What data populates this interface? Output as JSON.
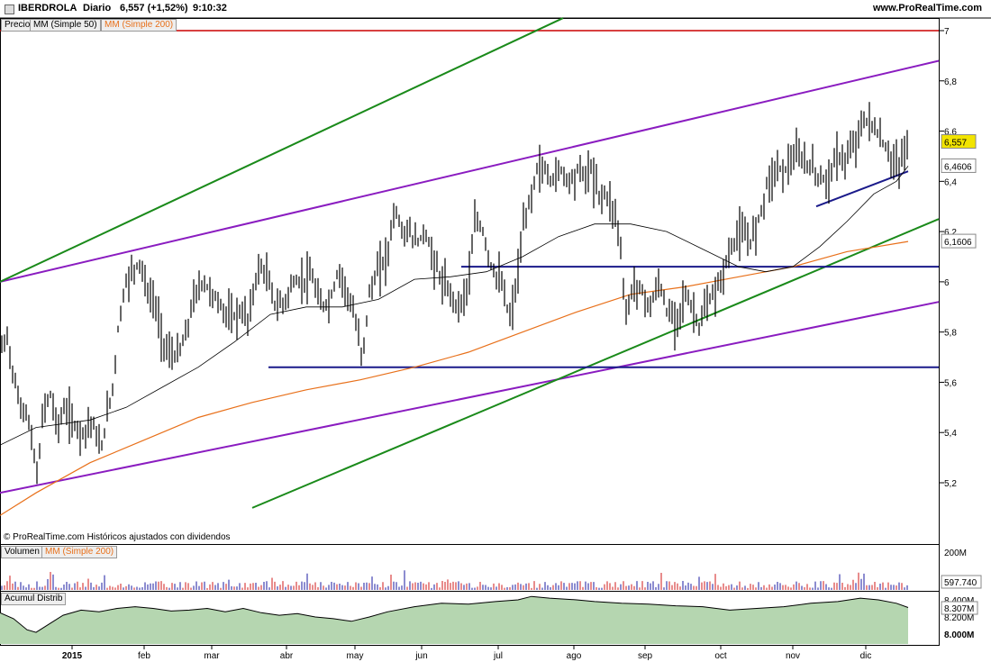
{
  "header": {
    "symbol": "IBERDROLA",
    "period": "Diario",
    "quote": "6,557 (+1,52%)",
    "time": "9:10:32",
    "site": "www.ProRealTime.com"
  },
  "legends": {
    "price": [
      "Precio",
      "MM (Simple 50)",
      "MM (Simple 200)"
    ],
    "volume": [
      "Volumen",
      "MM (Simple 200)"
    ],
    "acum": [
      "Acumul Distrib"
    ]
  },
  "watermark": "© ProRealTime.com  Históricos ajustados con dividendos",
  "colors": {
    "price": "#000000",
    "ma50": "#000000",
    "ma200": "#e8701a",
    "red_line": "#cc0000",
    "purple_channel": "#8a1cc0",
    "green_channel": "#1a8a1a",
    "blue_lines": "#1a1a8a",
    "vol_up": "#1a1aa0",
    "vol_down": "#d01a1a",
    "acum_fill": "#b5d6b0",
    "label_yellow": "#f2e400",
    "label_orange_text": "#e8701a"
  },
  "chart_data": [
    {
      "type": "line",
      "title": "IBERDROLA Diario",
      "x_labels": [
        "2015",
        "feb",
        "mar",
        "abr",
        "may",
        "jun",
        "jul",
        "ago",
        "sep",
        "oct",
        "nov",
        "dic"
      ],
      "ylim": [
        5.1,
        7.05
      ],
      "y_ticks": [
        "7",
        "6,8",
        "6,6",
        "6,4",
        "6,2",
        "6",
        "5,8",
        "5,6",
        "5,4",
        "5,2"
      ],
      "price_points": [
        [
          0,
          5.72
        ],
        [
          8,
          5.78
        ],
        [
          14,
          5.65
        ],
        [
          22,
          5.5
        ],
        [
          30,
          5.48
        ],
        [
          38,
          5.3
        ],
        [
          42,
          5.22
        ],
        [
          48,
          5.5
        ],
        [
          56,
          5.55
        ],
        [
          64,
          5.42
        ],
        [
          72,
          5.5
        ],
        [
          82,
          5.43
        ],
        [
          92,
          5.4
        ],
        [
          102,
          5.45
        ],
        [
          112,
          5.32
        ],
        [
          118,
          5.45
        ],
        [
          126,
          5.6
        ],
        [
          132,
          5.85
        ],
        [
          140,
          6.0
        ],
        [
          148,
          6.05
        ],
        [
          156,
          6.08
        ],
        [
          164,
          5.95
        ],
        [
          172,
          5.92
        ],
        [
          178,
          5.8
        ],
        [
          186,
          5.72
        ],
        [
          196,
          5.7
        ],
        [
          206,
          5.78
        ],
        [
          216,
          5.95
        ],
        [
          226,
          6.0
        ],
        [
          236,
          5.95
        ],
        [
          246,
          5.9
        ],
        [
          256,
          5.85
        ],
        [
          266,
          5.88
        ],
        [
          276,
          5.85
        ],
        [
          286,
          6.05
        ],
        [
          292,
          6.05
        ],
        [
          298,
          6.0
        ],
        [
          306,
          5.9
        ],
        [
          316,
          5.92
        ],
        [
          326,
          6.0
        ],
        [
          336,
          6.0
        ],
        [
          346,
          6.02
        ],
        [
          356,
          5.9
        ],
        [
          366,
          5.92
        ],
        [
          376,
          6.05
        ],
        [
          386,
          5.95
        ],
        [
          394,
          5.85
        ],
        [
          402,
          5.7
        ],
        [
          410,
          5.95
        ],
        [
          420,
          6.05
        ],
        [
          430,
          6.1
        ],
        [
          438,
          6.3
        ],
        [
          446,
          6.2
        ],
        [
          454,
          6.2
        ],
        [
          462,
          6.15
        ],
        [
          472,
          6.2
        ],
        [
          480,
          6.1
        ],
        [
          490,
          6.0
        ],
        [
          500,
          5.95
        ],
        [
          510,
          5.9
        ],
        [
          520,
          6.0
        ],
        [
          528,
          6.25
        ],
        [
          536,
          6.2
        ],
        [
          546,
          6.05
        ],
        [
          556,
          6.0
        ],
        [
          566,
          5.85
        ],
        [
          574,
          6.0
        ],
        [
          580,
          6.2
        ],
        [
          590,
          6.35
        ],
        [
          596,
          6.45
        ],
        [
          604,
          6.45
        ],
        [
          612,
          6.4
        ],
        [
          622,
          6.45
        ],
        [
          632,
          6.4
        ],
        [
          642,
          6.45
        ],
        [
          650,
          6.42
        ],
        [
          656,
          6.45
        ],
        [
          664,
          6.35
        ],
        [
          672,
          6.35
        ],
        [
          680,
          6.3
        ],
        [
          686,
          6.22
        ],
        [
          690,
          6.1
        ],
        [
          694,
          5.85
        ],
        [
          700,
          5.95
        ],
        [
          706,
          6.0
        ],
        [
          714,
          5.95
        ],
        [
          722,
          5.9
        ],
        [
          732,
          6.0
        ],
        [
          740,
          5.88
        ],
        [
          750,
          5.85
        ],
        [
          760,
          5.95
        ],
        [
          768,
          5.9
        ],
        [
          776,
          5.82
        ],
        [
          784,
          5.9
        ],
        [
          792,
          5.95
        ],
        [
          800,
          6.0
        ],
        [
          806,
          6.08
        ],
        [
          814,
          6.15
        ],
        [
          822,
          6.2
        ],
        [
          832,
          6.15
        ],
        [
          842,
          6.25
        ],
        [
          852,
          6.4
        ],
        [
          862,
          6.45
        ],
        [
          872,
          6.45
        ],
        [
          882,
          6.5
        ],
        [
          892,
          6.48
        ],
        [
          902,
          6.45
        ],
        [
          912,
          6.4
        ],
        [
          920,
          6.42
        ],
        [
          930,
          6.5
        ],
        [
          940,
          6.48
        ],
        [
          948,
          6.55
        ],
        [
          956,
          6.62
        ],
        [
          964,
          6.65
        ],
        [
          972,
          6.6
        ],
        [
          980,
          6.55
        ],
        [
          988,
          6.5
        ],
        [
          996,
          6.45
        ],
        [
          1002,
          6.5
        ],
        [
          1008,
          6.557
        ]
      ],
      "ma50_points": [
        [
          0,
          5.35
        ],
        [
          40,
          5.42
        ],
        [
          100,
          5.45
        ],
        [
          140,
          5.5
        ],
        [
          180,
          5.58
        ],
        [
          220,
          5.66
        ],
        [
          260,
          5.76
        ],
        [
          300,
          5.87
        ],
        [
          340,
          5.9
        ],
        [
          380,
          5.9
        ],
        [
          420,
          5.93
        ],
        [
          460,
          6.01
        ],
        [
          500,
          6.02
        ],
        [
          540,
          6.04
        ],
        [
          580,
          6.1
        ],
        [
          620,
          6.18
        ],
        [
          660,
          6.23
        ],
        [
          700,
          6.23
        ],
        [
          740,
          6.2
        ],
        [
          780,
          6.13
        ],
        [
          820,
          6.06
        ],
        [
          850,
          6.04
        ],
        [
          880,
          6.06
        ],
        [
          910,
          6.14
        ],
        [
          940,
          6.24
        ],
        [
          970,
          6.35
        ],
        [
          995,
          6.4
        ],
        [
          1008,
          6.4606
        ]
      ],
      "ma200_points": [
        [
          0,
          5.07
        ],
        [
          40,
          5.16
        ],
        [
          100,
          5.28
        ],
        [
          160,
          5.37
        ],
        [
          220,
          5.46
        ],
        [
          280,
          5.52
        ],
        [
          340,
          5.57
        ],
        [
          400,
          5.61
        ],
        [
          460,
          5.66
        ],
        [
          520,
          5.72
        ],
        [
          580,
          5.8
        ],
        [
          640,
          5.88
        ],
        [
          700,
          5.95
        ],
        [
          760,
          5.98
        ],
        [
          820,
          6.02
        ],
        [
          880,
          6.06
        ],
        [
          940,
          6.12
        ],
        [
          1008,
          6.1606
        ]
      ],
      "value_labels": {
        "last": "6,557",
        "ma50": "6,4606",
        "ma200": "6,1606"
      },
      "levels": {
        "red_resistance": 7.0
      },
      "trendlines": [
        {
          "name": "purple upper",
          "from": [
            0,
            6.0
          ],
          "to": [
            1042,
            6.88
          ]
        },
        {
          "name": "purple lower",
          "from": [
            0,
            5.16
          ],
          "to": [
            1042,
            5.92
          ]
        },
        {
          "name": "green upper",
          "from": [
            0,
            6.0
          ],
          "to": [
            625,
            7.05
          ]
        },
        {
          "name": "green lower",
          "from": [
            280,
            5.1
          ],
          "to": [
            1042,
            6.25
          ]
        },
        {
          "name": "blue support 5.66",
          "from": [
            298,
            5.66
          ],
          "to": [
            1042,
            5.66
          ]
        },
        {
          "name": "blue support 6.06",
          "from": [
            512,
            6.06
          ],
          "to": [
            1042,
            6.06
          ]
        },
        {
          "name": "blue short trend",
          "from": [
            906,
            6.3
          ],
          "to": [
            1008,
            6.44
          ]
        }
      ]
    },
    {
      "type": "bar",
      "title": "Volumen",
      "y_ticks": [
        "200M"
      ],
      "value_label": "597.740"
    },
    {
      "type": "area",
      "title": "Acumul Distrib",
      "y_ticks": [
        "8.400M",
        "8.200M",
        "8.000M"
      ],
      "value_label": "8.307M",
      "points": [
        [
          0,
          8.25
        ],
        [
          15,
          8.18
        ],
        [
          30,
          8.05
        ],
        [
          40,
          8.02
        ],
        [
          55,
          8.12
        ],
        [
          70,
          8.22
        ],
        [
          90,
          8.28
        ],
        [
          110,
          8.26
        ],
        [
          130,
          8.3
        ],
        [
          150,
          8.32
        ],
        [
          170,
          8.3
        ],
        [
          190,
          8.27
        ],
        [
          210,
          8.28
        ],
        [
          230,
          8.3
        ],
        [
          250,
          8.26
        ],
        [
          270,
          8.3
        ],
        [
          290,
          8.25
        ],
        [
          310,
          8.22
        ],
        [
          330,
          8.24
        ],
        [
          350,
          8.2
        ],
        [
          370,
          8.18
        ],
        [
          390,
          8.15
        ],
        [
          410,
          8.2
        ],
        [
          430,
          8.26
        ],
        [
          460,
          8.32
        ],
        [
          490,
          8.36
        ],
        [
          520,
          8.35
        ],
        [
          550,
          8.38
        ],
        [
          575,
          8.4
        ],
        [
          590,
          8.44
        ],
        [
          610,
          8.42
        ],
        [
          640,
          8.4
        ],
        [
          660,
          8.38
        ],
        [
          690,
          8.36
        ],
        [
          720,
          8.35
        ],
        [
          750,
          8.33
        ],
        [
          780,
          8.32
        ],
        [
          810,
          8.28
        ],
        [
          840,
          8.3
        ],
        [
          870,
          8.32
        ],
        [
          900,
          8.36
        ],
        [
          930,
          8.38
        ],
        [
          955,
          8.42
        ],
        [
          975,
          8.4
        ],
        [
          995,
          8.36
        ],
        [
          1008,
          8.31
        ]
      ]
    }
  ]
}
